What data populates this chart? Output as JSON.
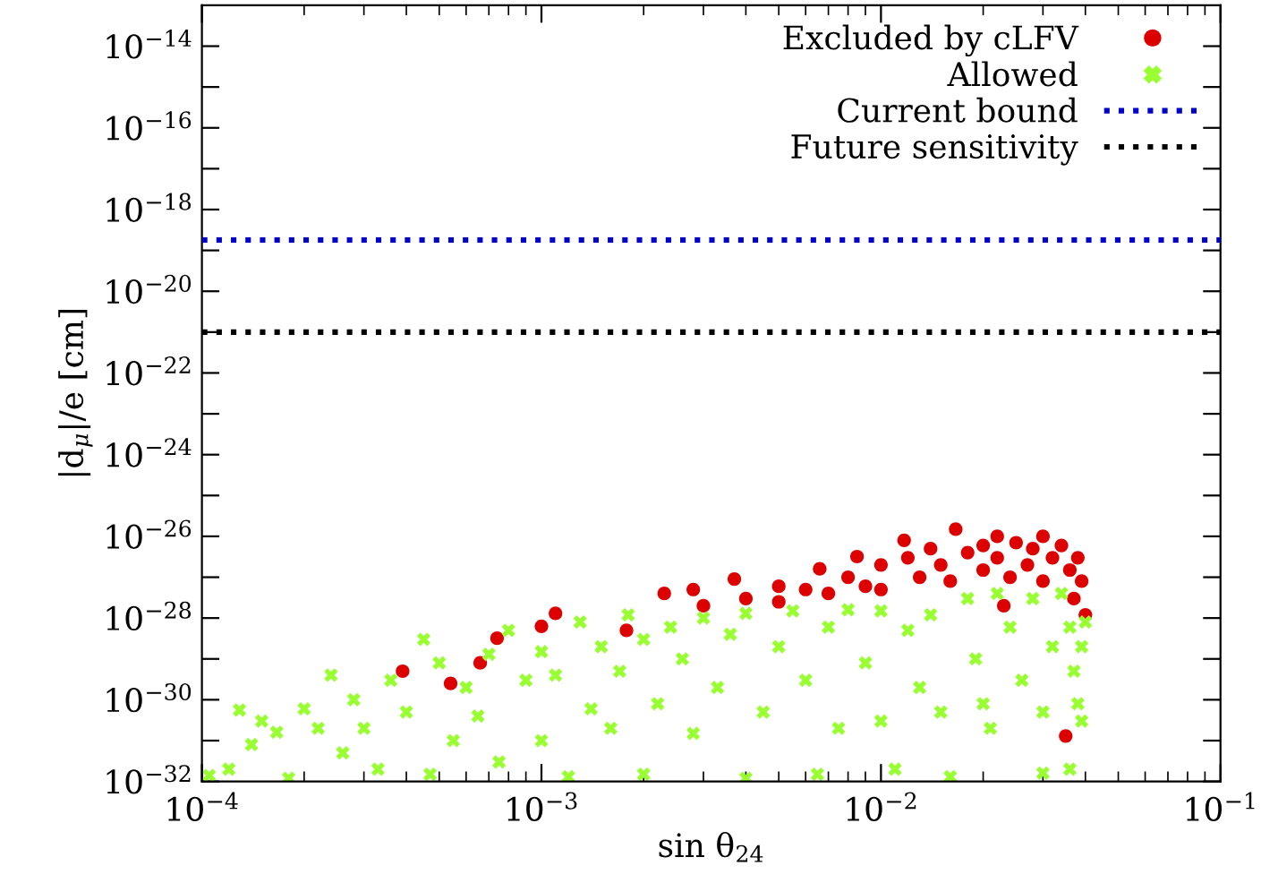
{
  "chart_data": {
    "type": "scatter",
    "xlabel": "sin θ$_{24}$",
    "ylabel": "|d$_{μ}$|/e [cm]",
    "log": "xy",
    "grid": false,
    "legend": "top right",
    "xlim": [
      0.0001,
      0.1
    ],
    "xticks": [
      {
        "value": 0.0001,
        "label": "10$^{−4}$"
      },
      {
        "value": 0.001,
        "label": "10$^{−3}$"
      },
      {
        "value": 0.01,
        "label": "10$^{−2}$"
      },
      {
        "value": 0.1,
        "label": "10$^{−1}$"
      }
    ],
    "ylim": [
      1e-32,
      1e-13
    ],
    "yticks": [
      {
        "value": 1e-32,
        "label": "10$^{−32}$"
      },
      {
        "value": 1e-31,
        "label": null
      },
      {
        "value": 1e-30,
        "label": "10$^{−30}$"
      },
      {
        "value": 1e-29,
        "label": null
      },
      {
        "value": 1e-28,
        "label": "10$^{−28}$"
      },
      {
        "value": 1e-27,
        "label": null
      },
      {
        "value": 1e-26,
        "label": "10$^{−26}$"
      },
      {
        "value": 1e-25,
        "label": null
      },
      {
        "value": 1e-24,
        "label": "10$^{−24}$"
      },
      {
        "value": 1e-23,
        "label": null
      },
      {
        "value": 1e-22,
        "label": "10$^{−22}$"
      },
      {
        "value": 1e-21,
        "label": null
      },
      {
        "value": 1e-20,
        "label": "10$^{−20}$"
      },
      {
        "value": 1e-19,
        "label": null
      },
      {
        "value": 1e-18,
        "label": "10$^{−18}$"
      },
      {
        "value": 1e-17,
        "label": null
      },
      {
        "value": 1e-16,
        "label": "10$^{−16}$"
      },
      {
        "value": 1e-15,
        "label": null
      },
      {
        "value": 1e-14,
        "label": "10$^{−14}$"
      }
    ],
    "ref_lines": [
      {
        "axis": "y",
        "value": 1.8e-19,
        "label": "Current bound",
        "color": "#0000cc",
        "line_style": "dotted"
      },
      {
        "axis": "y",
        "value": 1e-21,
        "label": "Future sensitivity",
        "color": "#000000",
        "line_style": "dotted"
      }
    ],
    "series": [
      {
        "name": "Excluded by cLFV",
        "color": "#dd0000",
        "marker": "circle",
        "x": [
          0.00039,
          0.00054,
          0.00066,
          0.00074,
          0.001,
          0.0011,
          0.00178,
          0.0023,
          0.0028,
          0.0037,
          0.005,
          0.0066,
          0.0085,
          0.0117,
          0.0166,
          0.022,
          0.03,
          0.039,
          0.04,
          0.035,
          0.003,
          0.004,
          0.005,
          0.006,
          0.007,
          0.008,
          0.009,
          0.01,
          0.01,
          0.012,
          0.013,
          0.014,
          0.015,
          0.016,
          0.018,
          0.02,
          0.02,
          0.022,
          0.024,
          0.025,
          0.027,
          0.028,
          0.03,
          0.032,
          0.034,
          0.036,
          0.038,
          0.023,
          0.037
        ],
        "values": [
          5e-30,
          2.5e-30,
          8e-30,
          3.2e-29,
          6.3e-29,
          1.3e-28,
          5e-29,
          4e-28,
          5e-28,
          9e-28,
          6e-28,
          1.6e-27,
          3.2e-27,
          8e-27,
          1.5e-26,
          1e-26,
          1e-26,
          8e-28,
          1.2e-28,
          1.3e-31,
          2e-28,
          3e-28,
          2.5e-28,
          5e-28,
          4e-28,
          1e-27,
          6e-28,
          2e-27,
          5e-28,
          3e-27,
          1e-27,
          5e-27,
          2e-27,
          8e-28,
          4e-27,
          1.5e-27,
          6e-27,
          3e-27,
          1e-27,
          7e-27,
          2e-27,
          5e-27,
          8e-28,
          3e-27,
          6e-27,
          1.5e-27,
          3e-27,
          2e-28,
          3e-28
        ]
      },
      {
        "name": "Allowed",
        "color": "#99ff33",
        "marker": "cross",
        "x": [
          0.000105,
          0.00012,
          0.000129,
          0.00014,
          0.00015,
          0.000166,
          0.00018,
          0.0002,
          0.00022,
          0.00024,
          0.00026,
          0.00028,
          0.0003,
          0.00033,
          0.00036,
          0.0004,
          0.00045,
          0.00047,
          0.0005,
          0.00055,
          0.0006,
          0.00065,
          0.0007,
          0.00075,
          0.0008,
          0.0009,
          0.001,
          0.001,
          0.0011,
          0.0012,
          0.0013,
          0.0014,
          0.0015,
          0.0016,
          0.0017,
          0.0018,
          0.002,
          0.002,
          0.0022,
          0.0024,
          0.0026,
          0.0028,
          0.003,
          0.0033,
          0.0036,
          0.004,
          0.004,
          0.0045,
          0.005,
          0.0055,
          0.006,
          0.0065,
          0.007,
          0.0075,
          0.008,
          0.009,
          0.01,
          0.01,
          0.011,
          0.012,
          0.013,
          0.014,
          0.015,
          0.016,
          0.018,
          0.019,
          0.02,
          0.021,
          0.022,
          0.024,
          0.026,
          0.028,
          0.03,
          0.03,
          0.032,
          0.034,
          0.036,
          0.037,
          0.038,
          0.039,
          0.04,
          0.039,
          0.036
        ],
        "values": [
          1.4e-32,
          2e-32,
          5.6e-31,
          8e-32,
          3e-31,
          1.6e-31,
          1.2e-32,
          6e-31,
          2e-31,
          4e-30,
          5e-32,
          1e-30,
          2e-31,
          2e-32,
          3e-30,
          5e-31,
          3e-29,
          1.5e-32,
          8e-30,
          1e-31,
          2e-30,
          4e-31,
          1.3e-29,
          3e-32,
          5e-29,
          3e-30,
          1e-31,
          1.5e-29,
          4e-30,
          1.3e-32,
          8e-29,
          6e-31,
          2e-29,
          2e-31,
          5e-30,
          1.2e-28,
          1.5e-32,
          3e-29,
          8e-31,
          6e-29,
          1e-29,
          1.5e-31,
          1e-28,
          2e-30,
          4e-29,
          1.2e-32,
          1.3e-28,
          5e-31,
          2e-29,
          1.5e-28,
          3e-30,
          1.5e-32,
          6e-29,
          2e-31,
          1.6e-28,
          8e-30,
          1.5e-28,
          3e-31,
          2e-32,
          5e-29,
          2e-30,
          1.2e-28,
          5e-31,
          1.3e-32,
          3e-28,
          1e-29,
          8e-31,
          2e-31,
          4e-28,
          6e-29,
          3e-30,
          3e-28,
          1.6e-32,
          5e-31,
          2e-29,
          4e-28,
          6e-29,
          5e-30,
          8e-31,
          2e-29,
          8e-29,
          3e-31,
          2e-32
        ]
      }
    ]
  }
}
